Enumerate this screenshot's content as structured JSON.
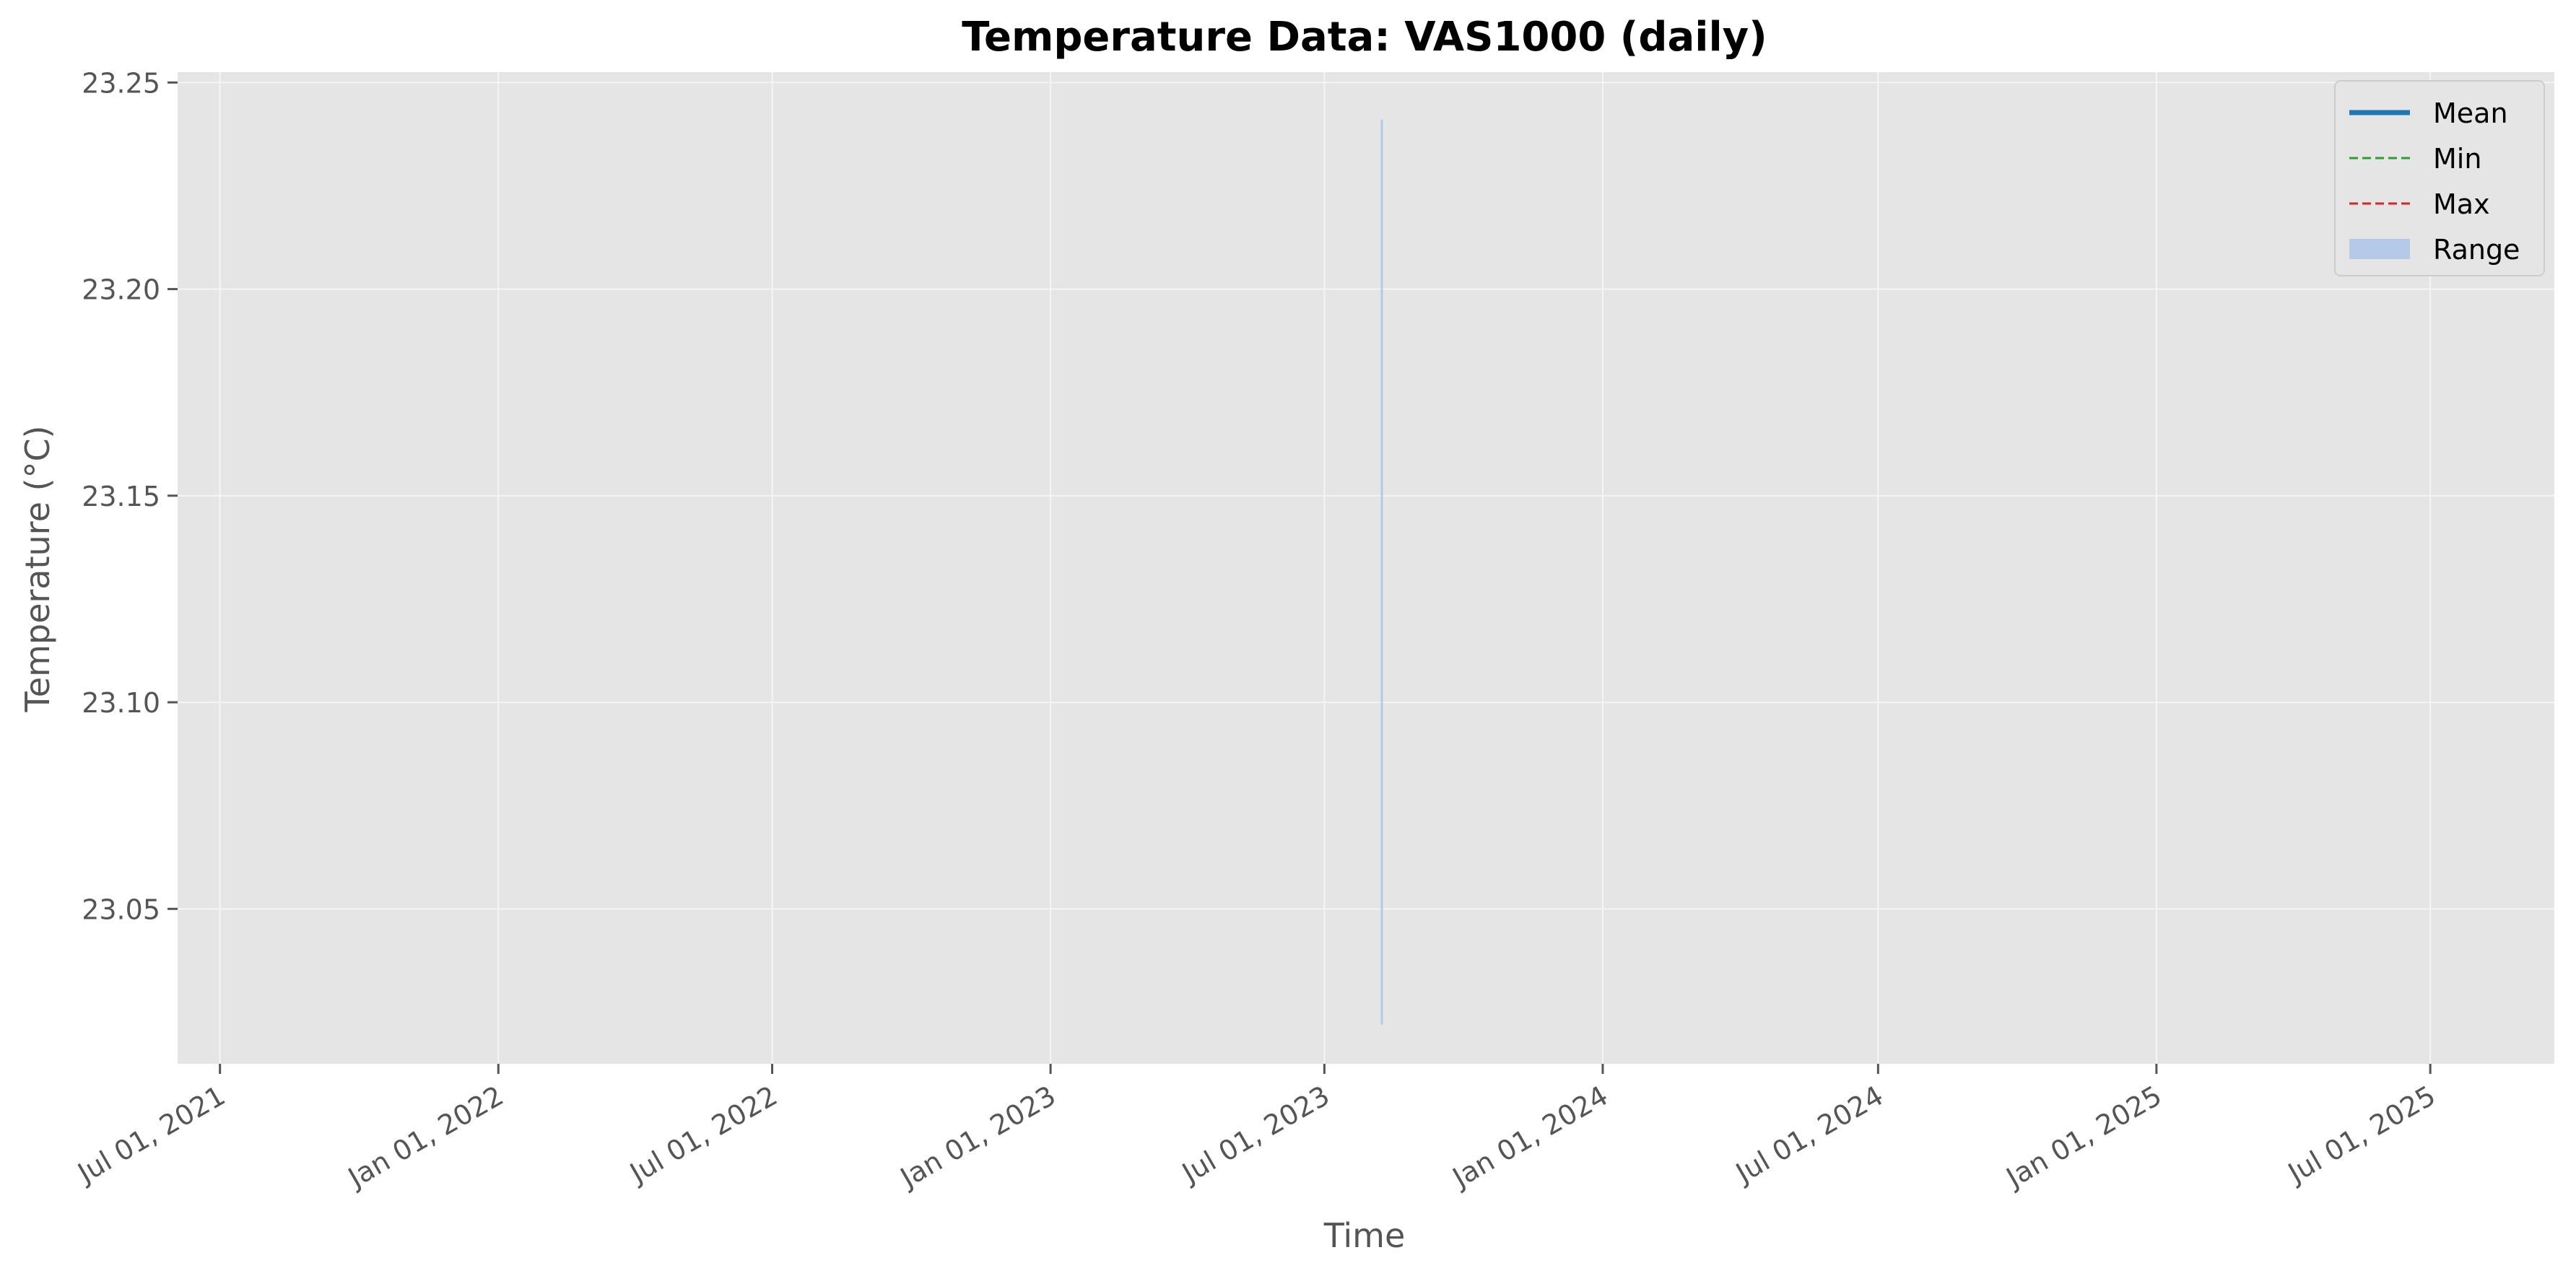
{
  "chart_data": {
    "type": "line",
    "title": "Temperature Data: VAS1000 (daily)",
    "xlabel": "Time",
    "ylabel": "Temperature (°C)",
    "x_axis_type": "date",
    "xlim": [
      "2021-06-03",
      "2025-09-21"
    ],
    "ylim": [
      23.0125,
      23.2525
    ],
    "x_ticks": [
      {
        "value": "2021-07-01",
        "label": "Jul 01, 2021"
      },
      {
        "value": "2022-01-01",
        "label": "Jan 01, 2022"
      },
      {
        "value": "2022-07-01",
        "label": "Jul 01, 2022"
      },
      {
        "value": "2023-01-01",
        "label": "Jan 01, 2023"
      },
      {
        "value": "2023-07-01",
        "label": "Jul 01, 2023"
      },
      {
        "value": "2024-01-01",
        "label": "Jan 01, 2024"
      },
      {
        "value": "2024-07-01",
        "label": "Jul 01, 2024"
      },
      {
        "value": "2025-01-01",
        "label": "Jan 01, 2025"
      },
      {
        "value": "2025-07-01",
        "label": "Jul 01, 2025"
      }
    ],
    "y_ticks": [
      {
        "value": 23.05,
        "label": "23.05"
      },
      {
        "value": 23.1,
        "label": "23.10"
      },
      {
        "value": 23.15,
        "label": "23.15"
      },
      {
        "value": 23.2,
        "label": "23.20"
      },
      {
        "value": 23.25,
        "label": "23.25"
      }
    ],
    "grid": true,
    "legend_position": "top-right",
    "series": [
      {
        "name": "Mean",
        "style": "solid",
        "color": "#1f77b4",
        "points": []
      },
      {
        "name": "Min",
        "style": "dashed",
        "color": "#2ca02c",
        "points": []
      },
      {
        "name": "Max",
        "style": "dashed",
        "color": "#d62728",
        "points": []
      }
    ],
    "range": {
      "name": "Range",
      "color": "#aec7e8",
      "points": [
        {
          "x": "2023-08-08",
          "low": 23.022,
          "high": 23.241
        }
      ]
    },
    "colors": {
      "plot_background": "#e5e5e5",
      "grid": "#f5f5f5",
      "text": "#555555",
      "title": "#000000"
    }
  }
}
